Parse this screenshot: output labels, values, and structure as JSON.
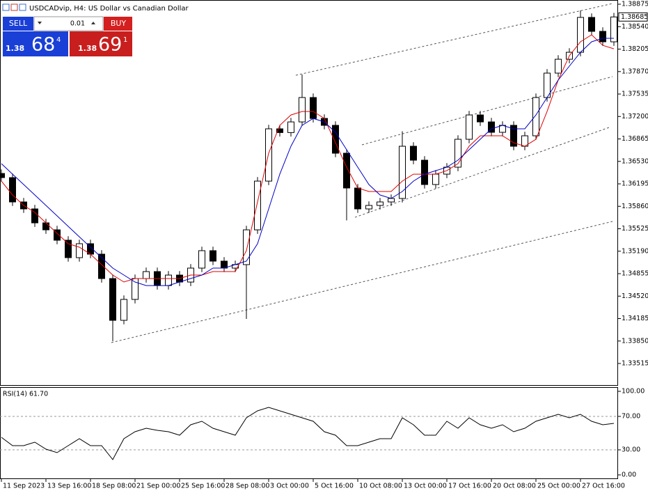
{
  "chart_data": [
    {
      "type": "candlestick",
      "title": "USDCADvip, H4:  US Dollar vs Canadian Dollar",
      "x": [
        0,
        4,
        8,
        12,
        16,
        20,
        24,
        28,
        32,
        36,
        40,
        44,
        48,
        52,
        56,
        60,
        64,
        68,
        72,
        76,
        80,
        84,
        88,
        92,
        96,
        100,
        104,
        108,
        112,
        116,
        120,
        124,
        128,
        132,
        136,
        140,
        144,
        148,
        152,
        156,
        160,
        164,
        168,
        172,
        176,
        180,
        184,
        188,
        192,
        196,
        200,
        204,
        208,
        212,
        216,
        220
      ],
      "open": [
        1.3635,
        1.36288,
        1.35925,
        1.35821,
        1.35613,
        1.35509,
        1.35354,
        1.35094,
        1.35302,
        1.35146,
        1.34782,
        1.34159,
        1.34471,
        1.34782,
        1.34886,
        1.34678,
        1.34834,
        1.3473,
        1.34938,
        1.35198,
        1.35042,
        1.34938,
        1.3499,
        1.35509,
        1.36236,
        1.37016,
        1.3696,
        1.37119,
        1.37483,
        1.37171,
        1.37068,
        1.36652,
        1.36133,
        1.35821,
        1.35873,
        1.35925,
        1.35977,
        1.36756,
        1.36548,
        1.36185,
        1.3634,
        1.36444,
        1.3686,
        1.37223,
        1.37119,
        1.36964,
        1.37068,
        1.36756,
        1.36912,
        1.37483,
        1.37847,
        1.38054,
        1.38158,
        1.38678,
        1.3847,
        1.38314
      ],
      "high": [
        1.3641,
        1.36348,
        1.35985,
        1.35881,
        1.35673,
        1.35569,
        1.35414,
        1.35362,
        1.35362,
        1.35206,
        1.34842,
        1.34531,
        1.34842,
        1.34946,
        1.34946,
        1.34894,
        1.34894,
        1.34998,
        1.35258,
        1.35258,
        1.35102,
        1.3505,
        1.35569,
        1.36296,
        1.37076,
        1.37076,
        1.37179,
        1.37826,
        1.37543,
        1.37231,
        1.37128,
        1.36712,
        1.36193,
        1.35933,
        1.35985,
        1.36037,
        1.3698,
        1.36816,
        1.36608,
        1.364,
        1.36504,
        1.3692,
        1.37283,
        1.37283,
        1.37179,
        1.37128,
        1.37128,
        1.36972,
        1.37543,
        1.37907,
        1.38114,
        1.38218,
        1.38782,
        1.38738,
        1.3853,
        1.38745
      ],
      "low": [
        1.36228,
        1.35865,
        1.35761,
        1.35553,
        1.35449,
        1.35294,
        1.35034,
        1.35034,
        1.35086,
        1.34722,
        1.33847,
        1.34099,
        1.34411,
        1.34722,
        1.34618,
        1.34618,
        1.3467,
        1.3467,
        1.34878,
        1.34982,
        1.34878,
        1.34878,
        1.3418,
        1.35449,
        1.36176,
        1.369,
        1.369,
        1.37059,
        1.37111,
        1.37008,
        1.36592,
        1.3565,
        1.35761,
        1.35761,
        1.35813,
        1.35865,
        1.35917,
        1.36488,
        1.36125,
        1.36125,
        1.3628,
        1.36384,
        1.368,
        1.37059,
        1.36904,
        1.36904,
        1.36696,
        1.36696,
        1.36852,
        1.37423,
        1.37787,
        1.37994,
        1.38098,
        1.3841,
        1.38254,
        1.38254
      ],
      "close": [
        1.36288,
        1.35925,
        1.35821,
        1.35613,
        1.35509,
        1.35354,
        1.35094,
        1.35302,
        1.35146,
        1.34782,
        1.34159,
        1.34471,
        1.34782,
        1.34886,
        1.34678,
        1.34834,
        1.3473,
        1.34938,
        1.35198,
        1.35042,
        1.34938,
        1.3499,
        1.35509,
        1.36236,
        1.37016,
        1.3696,
        1.37119,
        1.37483,
        1.37171,
        1.37068,
        1.36652,
        1.36133,
        1.35821,
        1.35873,
        1.35925,
        1.35977,
        1.36756,
        1.36548,
        1.36185,
        1.3634,
        1.36444,
        1.3686,
        1.37223,
        1.37119,
        1.36964,
        1.37068,
        1.36756,
        1.36912,
        1.37483,
        1.37847,
        1.38054,
        1.38158,
        1.38678,
        1.3847,
        1.38314,
        1.38685
      ],
      "up_color": "#ffffff",
      "down_color": "#000000",
      "wick_color": "#000000",
      "overlays": [
        {
          "color": "#e00000",
          "values": [
            1.36236,
            1.36029,
            1.35873,
            1.35769,
            1.35613,
            1.35457,
            1.35302,
            1.3525,
            1.35146,
            1.3499,
            1.34834,
            1.3473,
            1.34782,
            1.34782,
            1.34782,
            1.34782,
            1.34782,
            1.34834,
            1.34834,
            1.34886,
            1.34886,
            1.34886,
            1.35198,
            1.35925,
            1.36652,
            1.37068,
            1.37223,
            1.37275,
            1.37275,
            1.37171,
            1.36808,
            1.36444,
            1.36133,
            1.36081,
            1.36081,
            1.36081,
            1.36236,
            1.3634,
            1.3634,
            1.3634,
            1.36392,
            1.36496,
            1.36756,
            1.36912,
            1.36912,
            1.36912,
            1.36808,
            1.36756,
            1.3686,
            1.37275,
            1.37743,
            1.38106,
            1.38314,
            1.38418,
            1.38262,
            1.3821
          ]
        },
        {
          "color": "#0000c8",
          "values": [
            1.36496,
            1.3634,
            1.36185,
            1.36029,
            1.35873,
            1.35717,
            1.35561,
            1.35405,
            1.3525,
            1.35094,
            1.34938,
            1.34834,
            1.3473,
            1.34678,
            1.34678,
            1.34678,
            1.3473,
            1.34782,
            1.34834,
            1.34938,
            1.34938,
            1.3499,
            1.35042,
            1.35302,
            1.35821,
            1.3634,
            1.36756,
            1.37068,
            1.37171,
            1.37119,
            1.36964,
            1.36704,
            1.36444,
            1.36185,
            1.36029,
            1.35977,
            1.36081,
            1.36236,
            1.3634,
            1.36392,
            1.36444,
            1.36548,
            1.36704,
            1.3686,
            1.37016,
            1.37068,
            1.37016,
            1.37016,
            1.37223,
            1.37483,
            1.37743,
            1.37951,
            1.38158,
            1.38314,
            1.38366,
            1.38366
          ]
        }
      ],
      "trendlines": [
        {
          "x": [
            39.5,
            219.5
          ],
          "y": [
            1.33827,
            1.35634
          ]
        },
        {
          "x": [
            105.75,
            219.5
          ],
          "y": [
            1.37815,
            1.38885
          ]
        },
        {
          "x": [
            129.5,
            219.5
          ],
          "y": [
            1.36777,
            1.37795
          ]
        },
        {
          "x": [
            127,
            218.25
          ],
          "y": [
            1.35696,
            1.37036
          ]
        }
      ],
      "current_price": 1.38685,
      "xlim": [
        -0.5,
        221.5
      ],
      "xticks": [
        {
          "value": 0,
          "label": "11 Sep 2023"
        },
        {
          "value": 16,
          "label": "13 Sep 16:00"
        },
        {
          "value": 32,
          "label": "18 Sep 08:00"
        },
        {
          "value": 48,
          "label": "21 Sep 00:00"
        },
        {
          "value": 64,
          "label": "25 Sep 16:00"
        },
        {
          "value": 80,
          "label": "28 Sep 08:00"
        },
        {
          "value": 96,
          "label": "3 Oct 00:00"
        },
        {
          "value": 112,
          "label": "5 Oct 16:00"
        },
        {
          "value": 128,
          "label": "10 Oct 08:00"
        },
        {
          "value": 144,
          "label": "13 Oct 00:00"
        },
        {
          "value": 160,
          "label": "17 Oct 16:00"
        },
        {
          "value": 176,
          "label": "20 Oct 08:00"
        },
        {
          "value": 192,
          "label": "25 Oct 00:00"
        },
        {
          "value": 208,
          "label": "27 Oct 16:00"
        }
      ],
      "ylim": [
        1.33193,
        1.38917
      ],
      "yticks": [
        {
          "value": 1.38875,
          "label": "1.38875"
        },
        {
          "value": 1.3854,
          "label": "1.38540"
        },
        {
          "value": 1.38205,
          "label": "1.38205"
        },
        {
          "value": 1.3787,
          "label": "1.37870"
        },
        {
          "value": 1.37535,
          "label": "1.37535"
        },
        {
          "value": 1.372,
          "label": "1.37200"
        },
        {
          "value": 1.36865,
          "label": "1.36865"
        },
        {
          "value": 1.3653,
          "label": "1.36530"
        },
        {
          "value": 1.36195,
          "label": "1.36195"
        },
        {
          "value": 1.3586,
          "label": "1.35860"
        },
        {
          "value": 1.35525,
          "label": "1.35525"
        },
        {
          "value": 1.3519,
          "label": "1.35190"
        },
        {
          "value": 1.34855,
          "label": "1.34855"
        },
        {
          "value": 1.3452,
          "label": "1.34520"
        },
        {
          "value": 1.34185,
          "label": "1.34185"
        },
        {
          "value": 1.3385,
          "label": "1.33850"
        },
        {
          "value": 1.33515,
          "label": "1.33515"
        }
      ]
    },
    {
      "type": "line",
      "title": "RSI(14) 61.70",
      "x": [
        0,
        4,
        8,
        12,
        16,
        20,
        24,
        28,
        32,
        36,
        40,
        44,
        48,
        52,
        56,
        60,
        64,
        68,
        72,
        76,
        80,
        84,
        88,
        92,
        96,
        100,
        104,
        108,
        112,
        116,
        120,
        124,
        128,
        132,
        136,
        140,
        144,
        148,
        152,
        156,
        160,
        164,
        168,
        172,
        176,
        180,
        184,
        188,
        192,
        196,
        200,
        204,
        208,
        212,
        216,
        220
      ],
      "values": [
        45,
        35,
        35,
        39.2,
        30.8,
        26.7,
        35,
        43.3,
        35,
        35,
        18.3,
        43.3,
        51.7,
        55.8,
        53.3,
        51.7,
        47.5,
        60,
        64.2,
        55.8,
        51.7,
        47.5,
        68.3,
        76.7,
        80.8,
        76.7,
        72.5,
        68.3,
        64.2,
        51.7,
        47.5,
        35,
        35,
        39.2,
        43.3,
        43.3,
        68.3,
        60,
        47.5,
        47.5,
        64.2,
        55.8,
        68.3,
        60,
        55.8,
        60,
        51.7,
        55.8,
        64.2,
        68.3,
        72.5,
        68.3,
        72.5,
        64.2,
        60,
        61.7
      ],
      "color": "#000000",
      "levels": [
        70,
        30
      ],
      "xlim": [
        -0.5,
        221.5
      ],
      "ylim": [
        -5,
        105
      ],
      "yticks": [
        {
          "value": 100,
          "label": "100.00"
        },
        {
          "value": 70,
          "label": "70.00"
        },
        {
          "value": 30,
          "label": "30.00"
        },
        {
          "value": 0,
          "label": "0.00"
        }
      ]
    }
  ],
  "trade_panel": {
    "sell": "SELL",
    "lot": "0.01",
    "buy": "BUY",
    "sell_price": {
      "prefix": "1.38",
      "big": "68",
      "small": "4"
    },
    "buy_price": {
      "prefix": "1.38",
      "big": "69",
      "small": "1"
    }
  }
}
